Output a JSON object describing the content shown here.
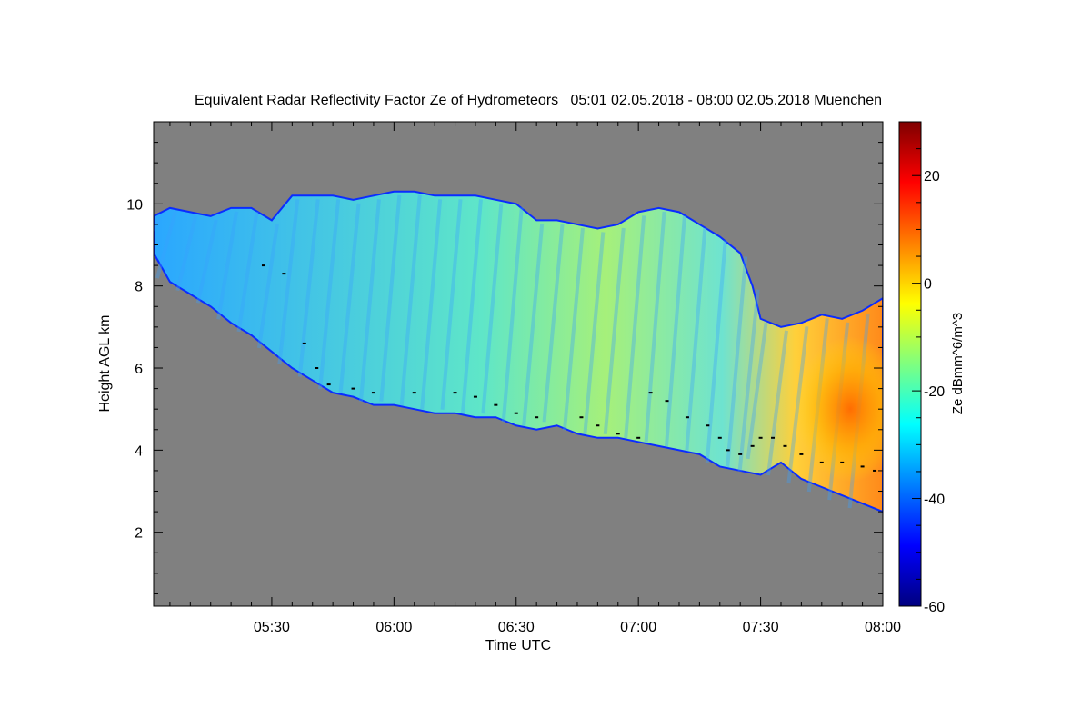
{
  "chart_data": {
    "type": "heatmap",
    "title": "Equivalent Radar Reflectivity Factor Ze of Hydrometeors   05:01 02.05.2018 - 08:00 02.05.2018 Muenchen",
    "xlabel": "Time UTC",
    "ylabel": "Height AGL km",
    "x_tick_labels": [
      "05:30",
      "06:00",
      "06:30",
      "07:00",
      "07:30",
      "08:00"
    ],
    "y_tick_labels": [
      "2",
      "4",
      "6",
      "8",
      "10"
    ],
    "xlim": [
      "05:01",
      "08:00"
    ],
    "ylim_km": [
      0.2,
      12.0
    ],
    "x_ticks_min": [
      30,
      60,
      90,
      120,
      150,
      180
    ],
    "y_ticks_km": [
      2,
      4,
      6,
      8,
      10
    ],
    "colorbar": {
      "label": "Ze dBmm^6/m^3",
      "tick_labels": [
        "20",
        "0",
        "-20",
        "-40",
        "-60"
      ],
      "tick_values": [
        20,
        0,
        -20,
        -40,
        -60
      ],
      "range": [
        -60,
        30
      ],
      "colormap": "jet",
      "colors": [
        "#00007f",
        "#0000ff",
        "#007fff",
        "#00ffff",
        "#7fff7f",
        "#ffff00",
        "#ff7f00",
        "#ff0000",
        "#7f0000"
      ]
    },
    "background_color": "#808080",
    "echo_top_km": [
      [
        1,
        9.7
      ],
      [
        5,
        9.9
      ],
      [
        10,
        9.8
      ],
      [
        15,
        9.7
      ],
      [
        20,
        9.9
      ],
      [
        25,
        9.9
      ],
      [
        30,
        9.6
      ],
      [
        35,
        10.2
      ],
      [
        40,
        10.2
      ],
      [
        45,
        10.2
      ],
      [
        50,
        10.1
      ],
      [
        55,
        10.2
      ],
      [
        60,
        10.3
      ],
      [
        65,
        10.3
      ],
      [
        70,
        10.2
      ],
      [
        75,
        10.2
      ],
      [
        80,
        10.2
      ],
      [
        85,
        10.1
      ],
      [
        90,
        10.0
      ],
      [
        95,
        9.6
      ],
      [
        100,
        9.6
      ],
      [
        105,
        9.5
      ],
      [
        110,
        9.4
      ],
      [
        115,
        9.5
      ],
      [
        120,
        9.8
      ],
      [
        125,
        9.9
      ],
      [
        130,
        9.8
      ],
      [
        135,
        9.5
      ],
      [
        140,
        9.2
      ],
      [
        145,
        8.8
      ],
      [
        148,
        8.0
      ],
      [
        150,
        7.2
      ],
      [
        155,
        7.0
      ],
      [
        160,
        7.1
      ],
      [
        165,
        7.3
      ],
      [
        170,
        7.2
      ],
      [
        175,
        7.4
      ],
      [
        180,
        7.7
      ]
    ],
    "echo_base_km": [
      [
        1,
        8.8
      ],
      [
        5,
        8.1
      ],
      [
        10,
        7.8
      ],
      [
        15,
        7.5
      ],
      [
        20,
        7.1
      ],
      [
        25,
        6.8
      ],
      [
        30,
        6.4
      ],
      [
        35,
        6.0
      ],
      [
        40,
        5.7
      ],
      [
        45,
        5.4
      ],
      [
        50,
        5.3
      ],
      [
        55,
        5.1
      ],
      [
        60,
        5.1
      ],
      [
        65,
        5.0
      ],
      [
        70,
        4.9
      ],
      [
        75,
        4.9
      ],
      [
        80,
        4.8
      ],
      [
        85,
        4.8
      ],
      [
        90,
        4.6
      ],
      [
        95,
        4.5
      ],
      [
        100,
        4.6
      ],
      [
        105,
        4.4
      ],
      [
        110,
        4.3
      ],
      [
        115,
        4.3
      ],
      [
        120,
        4.2
      ],
      [
        125,
        4.1
      ],
      [
        130,
        4.0
      ],
      [
        135,
        3.9
      ],
      [
        140,
        3.6
      ],
      [
        145,
        3.5
      ],
      [
        150,
        3.4
      ],
      [
        155,
        3.7
      ],
      [
        160,
        3.3
      ],
      [
        165,
        3.1
      ],
      [
        170,
        2.9
      ],
      [
        175,
        2.7
      ],
      [
        180,
        2.5
      ]
    ],
    "cloud_base_km": [
      [
        28,
        8.5
      ],
      [
        33,
        8.3
      ],
      [
        38,
        6.6
      ],
      [
        41,
        6.0
      ],
      [
        44,
        5.6
      ],
      [
        50,
        5.5
      ],
      [
        55,
        5.4
      ],
      [
        65,
        5.4
      ],
      [
        75,
        5.4
      ],
      [
        80,
        5.3
      ],
      [
        85,
        5.1
      ],
      [
        90,
        4.9
      ],
      [
        95,
        4.8
      ],
      [
        106,
        4.8
      ],
      [
        110,
        4.6
      ],
      [
        115,
        4.4
      ],
      [
        120,
        4.3
      ],
      [
        123,
        5.4
      ],
      [
        127,
        5.2
      ],
      [
        132,
        4.8
      ],
      [
        137,
        4.6
      ],
      [
        140,
        4.3
      ],
      [
        142,
        4.0
      ],
      [
        145,
        3.9
      ],
      [
        148,
        4.1
      ],
      [
        150,
        4.3
      ],
      [
        153,
        4.3
      ],
      [
        156,
        4.1
      ],
      [
        160,
        3.9
      ],
      [
        165,
        3.7
      ],
      [
        170,
        3.7
      ],
      [
        175,
        3.6
      ],
      [
        178,
        3.5
      ]
    ],
    "colorbar_min_dbz": -60,
    "colorbar_max_dbz": 30
  }
}
